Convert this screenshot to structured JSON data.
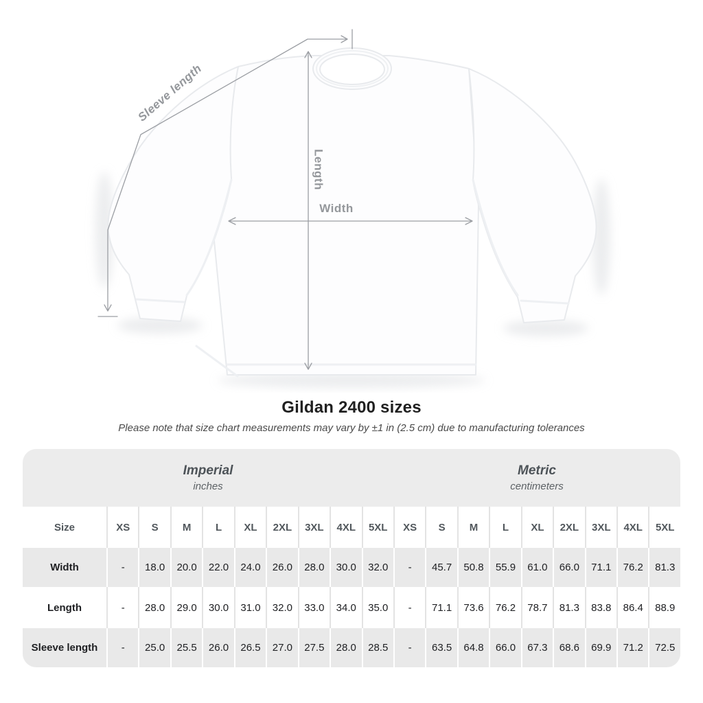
{
  "title": "Gildan 2400 sizes",
  "subtitle": "Please note that size chart measurements may vary by ±1 in (2.5 cm) due to manufacturing tolerances",
  "diagram": {
    "sleeve_length_label": "Sleeve length",
    "length_label": "Length",
    "width_label": "Width"
  },
  "table": {
    "groups": [
      {
        "label": "Imperial",
        "sublabel": "inches"
      },
      {
        "label": "Metric",
        "sublabel": "centimeters"
      }
    ],
    "size_header": "Size",
    "sizes": [
      "XS",
      "S",
      "M",
      "L",
      "XL",
      "2XL",
      "3XL",
      "4XL",
      "5XL"
    ],
    "rows": [
      {
        "label": "Width",
        "imperial": [
          "-",
          "18.0",
          "20.0",
          "22.0",
          "24.0",
          "26.0",
          "28.0",
          "30.0",
          "32.0"
        ],
        "metric": [
          "-",
          "45.7",
          "50.8",
          "55.9",
          "61.0",
          "66.0",
          "71.1",
          "76.2",
          "81.3"
        ]
      },
      {
        "label": "Length",
        "imperial": [
          "-",
          "28.0",
          "29.0",
          "30.0",
          "31.0",
          "32.0",
          "33.0",
          "34.0",
          "35.0"
        ],
        "metric": [
          "-",
          "71.1",
          "73.6",
          "76.2",
          "78.7",
          "81.3",
          "83.8",
          "86.4",
          "88.9"
        ]
      },
      {
        "label": "Sleeve length",
        "imperial": [
          "-",
          "25.0",
          "25.5",
          "26.0",
          "26.5",
          "27.0",
          "27.5",
          "28.0",
          "28.5"
        ],
        "metric": [
          "-",
          "63.5",
          "64.8",
          "66.0",
          "67.3",
          "68.6",
          "69.9",
          "71.2",
          "72.5"
        ]
      }
    ]
  },
  "colors": {
    "annotation": "#9b9ea3",
    "annotation_text": "#94979b",
    "band_bg": "#ececec",
    "stripe_bg": "#e9e9e9",
    "header_text": "#51575c",
    "value_text": "#202124"
  },
  "chart_data": {
    "type": "table",
    "title": "Gildan 2400 sizes",
    "note": "Please note that size chart measurements may vary by ±1 in (2.5 cm) due to manufacturing tolerances",
    "unit_groups": {
      "imperial": "inches",
      "metric": "centimeters"
    },
    "columns": [
      "XS",
      "S",
      "M",
      "L",
      "XL",
      "2XL",
      "3XL",
      "4XL",
      "5XL"
    ],
    "rows": [
      {
        "measurement": "Width",
        "imperial_inches": [
          null,
          18.0,
          20.0,
          22.0,
          24.0,
          26.0,
          28.0,
          30.0,
          32.0
        ],
        "metric_cm": [
          null,
          45.7,
          50.8,
          55.9,
          61.0,
          66.0,
          71.1,
          76.2,
          81.3
        ]
      },
      {
        "measurement": "Length",
        "imperial_inches": [
          null,
          28.0,
          29.0,
          30.0,
          31.0,
          32.0,
          33.0,
          34.0,
          35.0
        ],
        "metric_cm": [
          null,
          71.1,
          73.6,
          76.2,
          78.7,
          81.3,
          83.8,
          86.4,
          88.9
        ]
      },
      {
        "measurement": "Sleeve length",
        "imperial_inches": [
          null,
          25.0,
          25.5,
          26.0,
          26.5,
          27.0,
          27.5,
          28.0,
          28.5
        ],
        "metric_cm": [
          null,
          63.5,
          64.8,
          66.0,
          67.3,
          68.6,
          69.9,
          71.2,
          72.5
        ]
      }
    ]
  }
}
